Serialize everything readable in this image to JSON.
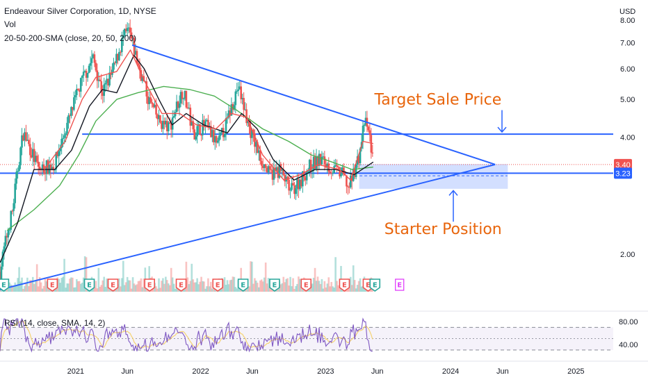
{
  "chart_data": {
    "type": "candlestick",
    "title": "Endeavour Silver Corporation, 1D, NYSE",
    "currency": "USD",
    "indicators": [
      "Vol",
      "20-50-200-SMA (close, 20, 50, 200)"
    ],
    "price_axis": {
      "ticks": [
        {
          "value": 8,
          "label": "8.00"
        },
        {
          "value": 7,
          "label": "7.00"
        },
        {
          "value": 6,
          "label": "6.00"
        },
        {
          "value": 5,
          "label": "5.00"
        },
        {
          "value": 4,
          "label": "4.00"
        },
        {
          "value": 2,
          "label": "2.00"
        }
      ],
      "scale": "log",
      "ylim": [
        1.6,
        8.3
      ]
    },
    "time_axis": {
      "ticks": [
        {
          "date": "2021-01-01",
          "label": "2021"
        },
        {
          "date": "2021-06-01",
          "label": "Jun"
        },
        {
          "date": "2022-01-01",
          "label": "2022"
        },
        {
          "date": "2022-06-01",
          "label": "Jun"
        },
        {
          "date": "2023-01-01",
          "label": "2023"
        },
        {
          "date": "2023-06-01",
          "label": "Jun"
        },
        {
          "date": "2024-01-01",
          "label": "2024"
        },
        {
          "date": "2024-06-01",
          "label": "Jun"
        },
        {
          "date": "2025-01-01",
          "label": "2025"
        }
      ],
      "xlim": [
        "2020-05-25",
        "2025-04-20"
      ]
    },
    "current_price": {
      "value": 3.4,
      "label": "3.40"
    },
    "support_price": {
      "value": 3.23,
      "label": "3.23"
    },
    "price_path": [
      [
        "2020-05-25",
        1.8
      ],
      [
        "2020-07-01",
        2.6
      ],
      [
        "2020-08-01",
        4.1
      ],
      [
        "2020-09-15",
        3.3
      ],
      [
        "2020-11-01",
        3.4
      ],
      [
        "2020-12-15",
        4.5
      ],
      [
        "2021-01-20",
        5.6
      ],
      [
        "2021-02-20",
        6.4
      ],
      [
        "2021-03-20",
        5.2
      ],
      [
        "2021-04-20",
        5.9
      ],
      [
        "2021-05-20",
        7.2
      ],
      [
        "2021-06-05",
        7.5
      ],
      [
        "2021-07-01",
        6.2
      ],
      [
        "2021-08-01",
        5.0
      ],
      [
        "2021-09-01",
        4.4
      ],
      [
        "2021-10-01",
        4.2
      ],
      [
        "2021-11-10",
        5.3
      ],
      [
        "2021-12-10",
        4.1
      ],
      [
        "2022-01-15",
        4.3
      ],
      [
        "2022-02-20",
        3.8
      ],
      [
        "2022-03-20",
        4.4
      ],
      [
        "2022-04-20",
        5.4
      ],
      [
        "2022-05-20",
        4.3
      ],
      [
        "2022-06-20",
        3.6
      ],
      [
        "2022-07-20",
        3.2
      ],
      [
        "2022-08-20",
        3.3
      ],
      [
        "2022-09-20",
        2.9
      ],
      [
        "2022-10-20",
        3.1
      ],
      [
        "2022-11-20",
        3.4
      ],
      [
        "2022-12-20",
        3.5
      ],
      [
        "2023-01-20",
        3.3
      ],
      [
        "2023-02-20",
        3.2
      ],
      [
        "2023-03-10",
        2.95
      ],
      [
        "2023-04-10",
        3.6
      ],
      [
        "2023-04-25",
        4.4
      ],
      [
        "2023-05-10",
        4.0
      ],
      [
        "2023-05-20",
        3.4
      ]
    ],
    "sma20": [
      [
        "2020-10-01",
        3.3
      ],
      [
        "2020-12-01",
        3.9
      ],
      [
        "2021-01-20",
        5.0
      ],
      [
        "2021-03-01",
        5.7
      ],
      [
        "2021-05-01",
        5.9
      ],
      [
        "2021-06-10",
        6.7
      ],
      [
        "2021-07-20",
        5.6
      ],
      [
        "2021-09-10",
        4.6
      ],
      [
        "2021-11-01",
        4.6
      ],
      [
        "2021-12-20",
        4.3
      ],
      [
        "2022-02-15",
        4.2
      ],
      [
        "2022-04-01",
        4.6
      ],
      [
        "2022-05-15",
        4.5
      ],
      [
        "2022-07-01",
        3.6
      ],
      [
        "2022-09-01",
        3.1
      ],
      [
        "2022-10-20",
        3.2
      ],
      [
        "2022-12-10",
        3.4
      ],
      [
        "2023-02-10",
        3.3
      ],
      [
        "2023-03-15",
        3.1
      ],
      [
        "2023-04-20",
        3.9
      ],
      [
        "2023-05-20",
        3.85
      ]
    ],
    "sma50": [
      [
        "2020-05-25",
        1.9
      ],
      [
        "2020-07-15",
        2.4
      ],
      [
        "2020-09-01",
        3.3
      ],
      [
        "2020-11-01",
        3.3
      ],
      [
        "2020-12-20",
        3.7
      ],
      [
        "2021-02-10",
        4.8
      ],
      [
        "2021-03-20",
        5.3
      ],
      [
        "2021-05-01",
        5.2
      ],
      [
        "2021-06-20",
        6.5
      ],
      [
        "2021-07-20",
        6.0
      ],
      [
        "2021-09-01",
        5.0
      ],
      [
        "2021-10-10",
        4.3
      ],
      [
        "2021-11-20",
        4.6
      ],
      [
        "2022-01-10",
        4.3
      ],
      [
        "2022-03-20",
        4.1
      ],
      [
        "2022-05-01",
        4.6
      ],
      [
        "2022-06-15",
        4.2
      ],
      [
        "2022-08-01",
        3.5
      ],
      [
        "2022-10-01",
        3.1
      ],
      [
        "2022-12-01",
        3.3
      ],
      [
        "2023-02-01",
        3.3
      ],
      [
        "2023-03-25",
        3.2
      ],
      [
        "2023-05-20",
        3.45
      ]
    ],
    "sma200": [
      [
        "2020-06-15",
        2.3
      ],
      [
        "2020-09-01",
        2.6
      ],
      [
        "2020-11-15",
        3.0
      ],
      [
        "2021-01-10",
        3.6
      ],
      [
        "2021-03-01",
        4.4
      ],
      [
        "2021-05-01",
        5.0
      ],
      [
        "2021-07-01",
        5.2
      ],
      [
        "2021-09-15",
        5.4
      ],
      [
        "2021-12-01",
        5.3
      ],
      [
        "2022-02-10",
        5.1
      ],
      [
        "2022-04-15",
        4.7
      ],
      [
        "2022-07-01",
        4.2
      ],
      [
        "2022-09-15",
        3.9
      ],
      [
        "2022-11-20",
        3.6
      ],
      [
        "2023-01-20",
        3.45
      ],
      [
        "2023-03-20",
        3.3
      ],
      [
        "2023-05-20",
        3.35
      ]
    ],
    "trendlines": [
      {
        "name": "upper",
        "points": [
          [
            "2021-06-15",
            6.9
          ],
          [
            "2024-05-10",
            3.4
          ]
        ]
      },
      {
        "name": "lower",
        "points": [
          [
            "2020-05-25",
            1.62
          ],
          [
            "2024-05-10",
            3.4
          ]
        ]
      }
    ],
    "horizontal_levels": [
      {
        "name": "target",
        "value": 4.07,
        "from": "2021-01-20",
        "to": "2025-04-20"
      },
      {
        "name": "support",
        "value": 3.23,
        "from": "2020-05-25",
        "to": "2025-04-20"
      }
    ],
    "buy_zone": {
      "from": "2023-04-10",
      "to": "2024-06-15",
      "top": 3.4,
      "bottom": 2.95,
      "mid": 3.18
    },
    "annotations": [
      {
        "text": "Target Sale Price",
        "date": "2023-11-25",
        "price": 4.85
      },
      {
        "text": "Starter Position",
        "date": "2023-12-10",
        "price": 2.25
      }
    ],
    "earnings": [
      {
        "date": "2020-06-05",
        "type": "positive"
      },
      {
        "date": "2020-10-25",
        "type": "negative"
      },
      {
        "date": "2021-02-10",
        "type": "positive"
      },
      {
        "date": "2021-04-20",
        "type": "negative"
      },
      {
        "date": "2021-08-05",
        "type": "negative"
      },
      {
        "date": "2021-11-05",
        "type": "negative"
      },
      {
        "date": "2022-02-20",
        "type": "negative"
      },
      {
        "date": "2022-05-05",
        "type": "positive"
      },
      {
        "date": "2022-08-05",
        "type": "positive"
      },
      {
        "date": "2022-11-05",
        "type": "negative"
      },
      {
        "date": "2023-02-25",
        "type": "negative"
      },
      {
        "date": "2023-05-05",
        "type": "negative"
      },
      {
        "date": "2023-05-25",
        "type": "positive"
      },
      {
        "date": "2023-08-05",
        "type": "future"
      }
    ],
    "earnings_label": "E",
    "rsi": {
      "label": "RSI (14, close, SMA, 14, 2)",
      "ticks": [
        {
          "value": 80,
          "label": "80.00"
        },
        {
          "value": 40,
          "label": "40.00"
        }
      ],
      "ylim": [
        25,
        90
      ],
      "upper_band": 70,
      "lower_band": 30,
      "mid_band": 50
    }
  },
  "colors": {
    "up": "#26a69a",
    "down": "#ef5350",
    "sma20": "#ef5350",
    "sma50": "#131722",
    "sma200": "#4caf50",
    "drawing": "#2962ff",
    "annotation": "#e8650c",
    "future_earnings": "#e040fb",
    "rsi": "#7e57c2",
    "rsi_ma": "#f5d372"
  }
}
